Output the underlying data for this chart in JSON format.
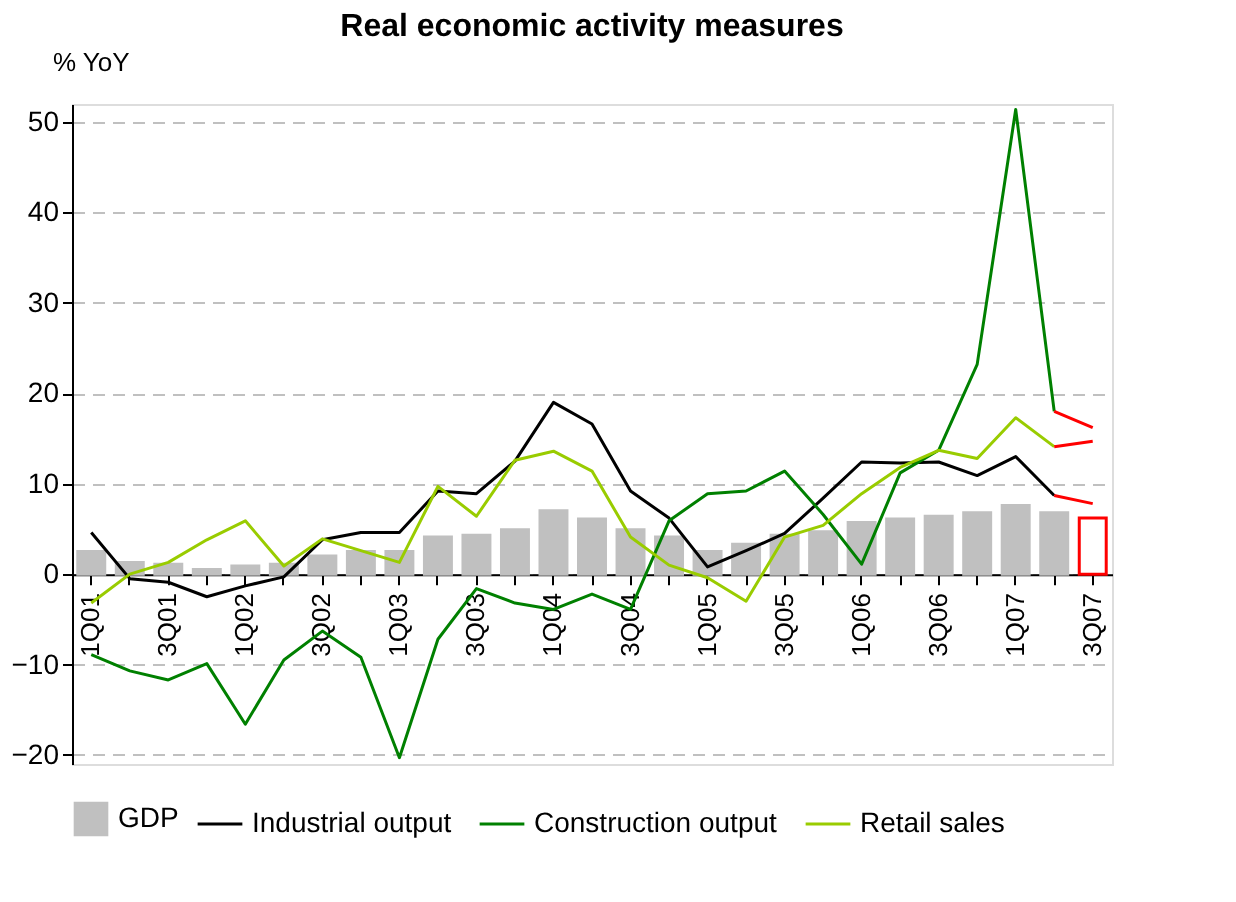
{
  "chart_data": {
    "type": "line",
    "title": "Real economic activity measures",
    "ylabel": "% YoY",
    "categories": [
      "1Q01",
      null,
      "3Q01",
      null,
      "1Q02",
      null,
      "3Q02",
      null,
      "1Q03",
      null,
      "3Q03",
      null,
      "1Q04",
      null,
      "3Q04",
      null,
      "1Q05",
      null,
      "3Q05",
      null,
      "1Q06",
      null,
      "3Q06",
      null,
      "1Q07",
      null,
      "3Q07"
    ],
    "series": [
      {
        "name": "GDP",
        "type": "bar",
        "color": "#c0c0c0",
        "colors": [
          "#c0c0c0",
          "#c0c0c0",
          "#c0c0c0",
          "#c0c0c0",
          "#c0c0c0",
          "#c0c0c0",
          "#c0c0c0",
          "#c0c0c0",
          "#c0c0c0",
          "#c0c0c0",
          "#c0c0c0",
          "#c0c0c0",
          "#c0c0c0",
          "#c0c0c0",
          "#c0c0c0",
          "#c0c0c0",
          "#c0c0c0",
          "#c0c0c0",
          "#c0c0c0",
          "#c0c0c0",
          "#c0c0c0",
          "#c0c0c0",
          "#c0c0c0",
          "#c0c0c0",
          "#c0c0c0",
          "#c0c0c0",
          "#ff0000"
        ],
        "values": [
          2.5,
          1.3,
          1.1,
          0.5,
          0.9,
          1.1,
          2.0,
          2.5,
          2.5,
          4.1,
          4.3,
          4.9,
          7.0,
          6.1,
          4.9,
          4.1,
          2.5,
          3.3,
          4.3,
          4.7,
          5.7,
          6.1,
          6.4,
          6.8,
          7.6,
          6.8,
          6.2
        ]
      },
      {
        "name": "Industrial output",
        "color": "#000000",
        "values": [
          4.6,
          -0.5,
          -0.9,
          -2.5,
          -1.3,
          -0.3,
          3.8,
          4.6,
          4.6,
          9.2,
          8.9,
          12.5,
          19.0,
          16.6,
          9.2,
          6.2,
          0.8,
          2.6,
          4.5,
          8.4,
          12.4,
          12.3,
          12.4,
          10.9,
          13.0,
          8.7,
          null
        ]
      },
      {
        "name": "Construction output",
        "color": "#008000",
        "values": [
          -8.9,
          -10.7,
          -11.7,
          -9.9,
          -16.6,
          -9.5,
          -6.3,
          -9.2,
          -20.3,
          -7.2,
          -1.6,
          -3.2,
          -3.9,
          -2.2,
          -3.9,
          5.9,
          8.9,
          9.2,
          11.4,
          6.6,
          1.1,
          11.2,
          13.7,
          23.2,
          51.4,
          18.0,
          null
        ]
      },
      {
        "name": "Retail sales",
        "color": "#99cc00",
        "values": [
          -3.2,
          0.0,
          1.3,
          3.8,
          5.9,
          0.9,
          3.9,
          2.6,
          1.3,
          9.7,
          6.4,
          12.6,
          13.6,
          11.4,
          4.1,
          1.0,
          -0.4,
          -3.0,
          4.1,
          5.4,
          8.9,
          11.8,
          13.7,
          12.8,
          17.3,
          14.1,
          null
        ]
      },
      {
        "type": "line",
        "color": "#ff0000",
        "values": [
          null,
          null,
          null,
          null,
          null,
          null,
          null,
          null,
          null,
          null,
          null,
          null,
          null,
          null,
          null,
          null,
          null,
          null,
          null,
          null,
          null,
          null,
          null,
          null,
          null,
          8.7,
          7.8
        ]
      },
      {
        "type": "line",
        "color": "#ff0000",
        "values": [
          null,
          null,
          null,
          null,
          null,
          null,
          null,
          null,
          null,
          null,
          null,
          null,
          null,
          null,
          null,
          null,
          null,
          null,
          null,
          null,
          null,
          null,
          null,
          null,
          null,
          18.0,
          16.2
        ]
      },
      {
        "type": "line",
        "color": "#ff0000",
        "values": [
          null,
          null,
          null,
          null,
          null,
          null,
          null,
          null,
          null,
          null,
          null,
          null,
          null,
          null,
          null,
          null,
          null,
          null,
          null,
          null,
          null,
          null,
          null,
          null,
          null,
          14.1,
          14.7
        ]
      }
    ],
    "ylim": [
      -21,
      52
    ],
    "yticks": [
      -20,
      -10,
      0,
      10,
      20,
      30,
      40,
      50
    ],
    "grid": "y",
    "legend": "bottom",
    "line_style": "solid",
    "marker": "none"
  }
}
